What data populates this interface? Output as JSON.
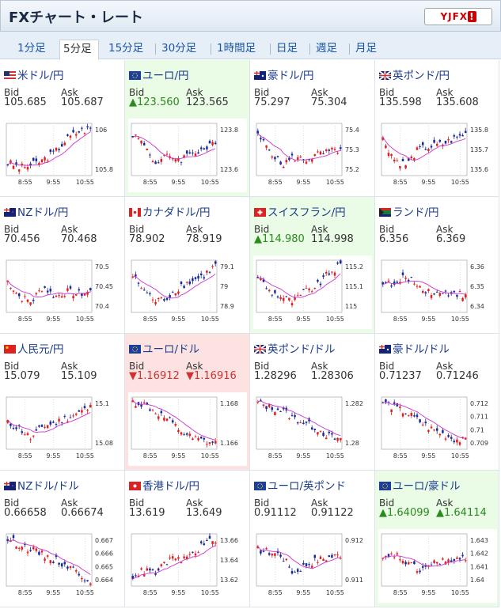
{
  "header": {
    "title": "FXチャート・レート",
    "logo": "YJFX!"
  },
  "tabs": [
    "1分足",
    "5分足",
    "15分足",
    "30分足",
    "1時間足",
    "日足",
    "週足",
    "月足"
  ],
  "active_tab": 1,
  "labels": {
    "bid": "Bid",
    "ask": "Ask"
  },
  "x_ticks": [
    "8:55",
    "9:55",
    "10:55"
  ],
  "pairs": [
    {
      "name": "米ドル/円",
      "bid": "105.685",
      "ask": "105.687",
      "trend": "none",
      "flag": "us",
      "yticks": [
        "106",
        "105.8"
      ]
    },
    {
      "name": "ユーロ/円",
      "bid": "▲123.560",
      "ask": "123.565",
      "trend": "up",
      "flag": "eu",
      "yticks": [
        "123.8",
        "123.6"
      ]
    },
    {
      "name": "豪ドル/円",
      "bid": "75.297",
      "ask": "75.304",
      "trend": "none",
      "flag": "au",
      "yticks": [
        "75.4",
        "75.3",
        "75.2"
      ]
    },
    {
      "name": "英ポンド/円",
      "bid": "135.598",
      "ask": "135.608",
      "trend": "none",
      "flag": "gb",
      "yticks": [
        "135.8",
        "135.7",
        "135.6"
      ]
    },
    {
      "name": "NZドル/円",
      "bid": "70.456",
      "ask": "70.468",
      "trend": "none",
      "flag": "nz",
      "yticks": [
        "70.5",
        "70.45",
        "70.4"
      ]
    },
    {
      "name": "カナダドル/円",
      "bid": "78.902",
      "ask": "78.919",
      "trend": "none",
      "flag": "ca",
      "yticks": [
        "79.1",
        "79",
        "78.9"
      ]
    },
    {
      "name": "スイスフラン/円",
      "bid": "▲114.980",
      "ask": "114.998",
      "trend": "up",
      "flag": "ch",
      "yticks": [
        "115.2",
        "115.1",
        "115"
      ]
    },
    {
      "name": "ランド/円",
      "bid": "6.356",
      "ask": "6.369",
      "trend": "none",
      "flag": "za",
      "yticks": [
        "6.36",
        "6.35",
        "6.34"
      ]
    },
    {
      "name": "人民元/円",
      "bid": "15.079",
      "ask": "15.109",
      "trend": "none",
      "flag": "cn",
      "yticks": [
        "15.1",
        "15.08"
      ]
    },
    {
      "name": "ユーロ/ドル",
      "bid": "▼1.16912",
      "ask": "▼1.16916",
      "trend": "down",
      "flag": "eu",
      "yticks": [
        "1.168",
        "1.166"
      ]
    },
    {
      "name": "英ポンド/ドル",
      "bid": "1.28296",
      "ask": "1.28306",
      "trend": "none",
      "flag": "gb",
      "yticks": [
        "1.282",
        "1.28"
      ]
    },
    {
      "name": "豪ドル/ドル",
      "bid": "0.71237",
      "ask": "0.71246",
      "trend": "none",
      "flag": "au",
      "yticks": [
        "0.712",
        "0.711",
        "0.71",
        "0.709"
      ]
    },
    {
      "name": "NZドル/ドル",
      "bid": "0.66658",
      "ask": "0.66674",
      "trend": "none",
      "flag": "nz",
      "yticks": [
        "0.667",
        "0.666",
        "0.665",
        "0.664"
      ]
    },
    {
      "name": "香港ドル/円",
      "bid": "13.619",
      "ask": "13.649",
      "trend": "none",
      "flag": "hk",
      "yticks": [
        "13.66",
        "13.64",
        "13.62"
      ]
    },
    {
      "name": "ユーロ/英ポンド",
      "bid": "0.91112",
      "ask": "0.91122",
      "trend": "none",
      "flag": "eu",
      "yticks": [
        "0.912",
        "0.911"
      ]
    },
    {
      "name": "ユーロ/豪ドル",
      "bid": "▲1.64099",
      "ask": "▲1.64114",
      "trend": "up",
      "flag": "eu",
      "yticks": [
        "1.643",
        "1.642",
        "1.641",
        "1.64"
      ]
    }
  ],
  "colors": {
    "up_candle": "#e02020",
    "down_candle": "#1a2a9a",
    "ma_line": "#cc33cc",
    "ma2_line": "#33aacc"
  }
}
